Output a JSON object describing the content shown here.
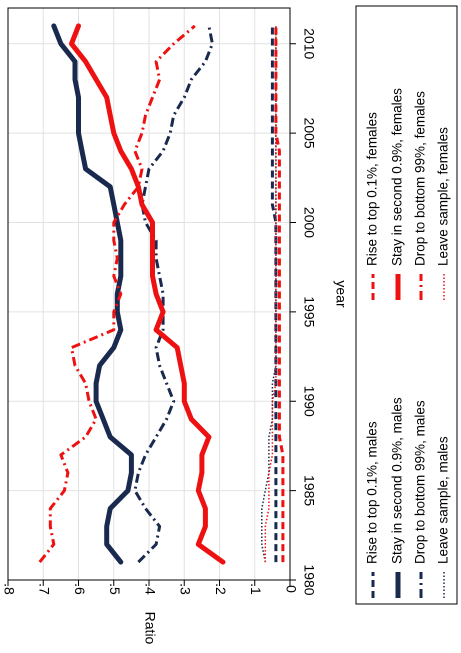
{
  "chart_data": {
    "type": "line",
    "orientation": "rotated-90-clockwise",
    "xlabel": "year",
    "ylabel": "Ratio",
    "xlim": [
      1980,
      2012
    ],
    "ylim": [
      0,
      0.8
    ],
    "xticks": [
      1980,
      1985,
      1990,
      1995,
      2000,
      2005,
      2010
    ],
    "yticks": [
      0,
      0.1,
      0.2,
      0.3,
      0.4,
      0.5,
      0.6,
      0.7,
      0.8
    ],
    "ytick_labels": [
      "0",
      ".1",
      ".2",
      ".3",
      ".4",
      ".5",
      ".6",
      ".7",
      ".8"
    ],
    "grid": true,
    "legend_position": "right-side",
    "colors": {
      "navy": "#1a2a4f",
      "red": "#ee1111"
    },
    "x": [
      1981,
      1982,
      1983,
      1984,
      1985,
      1986,
      1987,
      1988,
      1989,
      1990,
      1991,
      1992,
      1993,
      1994,
      1995,
      1996,
      1997,
      1998,
      1999,
      2000,
      2001,
      2002,
      2003,
      2004,
      2005,
      2006,
      2007,
      2008,
      2009,
      2010,
      2011
    ],
    "series": [
      {
        "name": "Rise to top 0.1%, males",
        "color": "#1a2a4f",
        "dash": "dash",
        "width": 3,
        "values": [
          0.04,
          0.04,
          0.04,
          0.04,
          0.04,
          0.04,
          0.04,
          0.04,
          0.04,
          0.04,
          0.04,
          0.04,
          0.04,
          0.04,
          0.04,
          0.04,
          0.04,
          0.04,
          0.04,
          0.04,
          0.05,
          0.05,
          0.05,
          0.05,
          0.05,
          0.05,
          0.05,
          0.05,
          0.05,
          0.05,
          0.05
        ]
      },
      {
        "name": "Stay in second 0.9%, males",
        "color": "#1a2a4f",
        "dash": "solid",
        "width": 5,
        "values": [
          0.48,
          0.52,
          0.52,
          0.51,
          0.46,
          0.45,
          0.45,
          0.51,
          0.53,
          0.55,
          0.55,
          0.54,
          0.5,
          0.48,
          0.49,
          0.49,
          0.48,
          0.48,
          0.48,
          0.49,
          0.5,
          0.51,
          0.58,
          0.59,
          0.6,
          0.6,
          0.6,
          0.61,
          0.61,
          0.65,
          0.67
        ]
      },
      {
        "name": "Drop to bottom 99%, males",
        "color": "#1a2a4f",
        "dash": "dashdot",
        "width": 3,
        "values": [
          0.43,
          0.38,
          0.37,
          0.41,
          0.44,
          0.43,
          0.41,
          0.38,
          0.35,
          0.33,
          0.35,
          0.37,
          0.38,
          0.36,
          0.36,
          0.36,
          0.37,
          0.38,
          0.38,
          0.41,
          0.42,
          0.41,
          0.4,
          0.36,
          0.34,
          0.33,
          0.3,
          0.28,
          0.24,
          0.22,
          0.23
        ]
      },
      {
        "name": "Leave sample, males",
        "color": "#1a2a4f",
        "dash": "dot",
        "width": 1.5,
        "values": [
          0.07,
          0.08,
          0.08,
          0.08,
          0.07,
          0.06,
          0.06,
          0.06,
          0.05,
          0.05,
          0.05,
          0.04,
          0.04,
          0.04,
          0.04,
          0.04,
          0.04,
          0.04,
          0.04,
          0.04,
          0.04,
          0.04,
          0.04,
          0.04,
          0.04,
          0.04,
          0.04,
          0.04,
          0.04,
          0.04,
          0.04
        ]
      },
      {
        "name": "Rise to top 0.1%, females",
        "color": "#ee1111",
        "dash": "dash",
        "width": 3,
        "values": [
          0.02,
          0.02,
          0.02,
          0.02,
          0.02,
          0.02,
          0.02,
          0.03,
          0.03,
          0.03,
          0.03,
          0.03,
          0.03,
          0.03,
          0.03,
          0.03,
          0.03,
          0.03,
          0.03,
          0.03,
          0.03,
          0.03,
          0.03,
          0.03,
          0.04,
          0.04,
          0.04,
          0.04,
          0.04,
          0.04,
          0.04
        ]
      },
      {
        "name": "Stay in second 0.9%, females",
        "color": "#ee1111",
        "dash": "solid",
        "width": 5,
        "values": [
          0.19,
          0.26,
          0.24,
          0.24,
          0.26,
          0.25,
          0.25,
          0.23,
          0.28,
          0.3,
          0.3,
          0.31,
          0.32,
          0.38,
          0.36,
          0.38,
          0.39,
          0.39,
          0.39,
          0.39,
          0.42,
          0.43,
          0.45,
          0.48,
          0.5,
          0.51,
          0.52,
          0.55,
          0.58,
          0.62,
          0.6
        ]
      },
      {
        "name": "Drop to bottom 99%, females",
        "color": "#ee1111",
        "dash": "dashdot",
        "width": 3,
        "values": [
          0.71,
          0.67,
          0.68,
          0.68,
          0.64,
          0.63,
          0.65,
          0.58,
          0.55,
          0.57,
          0.58,
          0.61,
          0.62,
          0.5,
          0.5,
          0.48,
          0.5,
          0.49,
          0.5,
          0.5,
          0.47,
          0.43,
          0.42,
          0.44,
          0.42,
          0.41,
          0.39,
          0.37,
          0.38,
          0.33,
          0.27
        ]
      },
      {
        "name": "Leave sample, females",
        "color": "#ee1111",
        "dash": "dot",
        "width": 1.5,
        "values": [
          0.07,
          0.07,
          0.07,
          0.06,
          0.06,
          0.06,
          0.05,
          0.05,
          0.05,
          0.05,
          0.04,
          0.04,
          0.04,
          0.04,
          0.04,
          0.04,
          0.04,
          0.04,
          0.04,
          0.04,
          0.04,
          0.04,
          0.04,
          0.04,
          0.04,
          0.04,
          0.04,
          0.04,
          0.04,
          0.04,
          0.04
        ]
      }
    ],
    "legend_order": [
      0,
      4,
      1,
      5,
      2,
      6,
      3,
      7
    ]
  }
}
